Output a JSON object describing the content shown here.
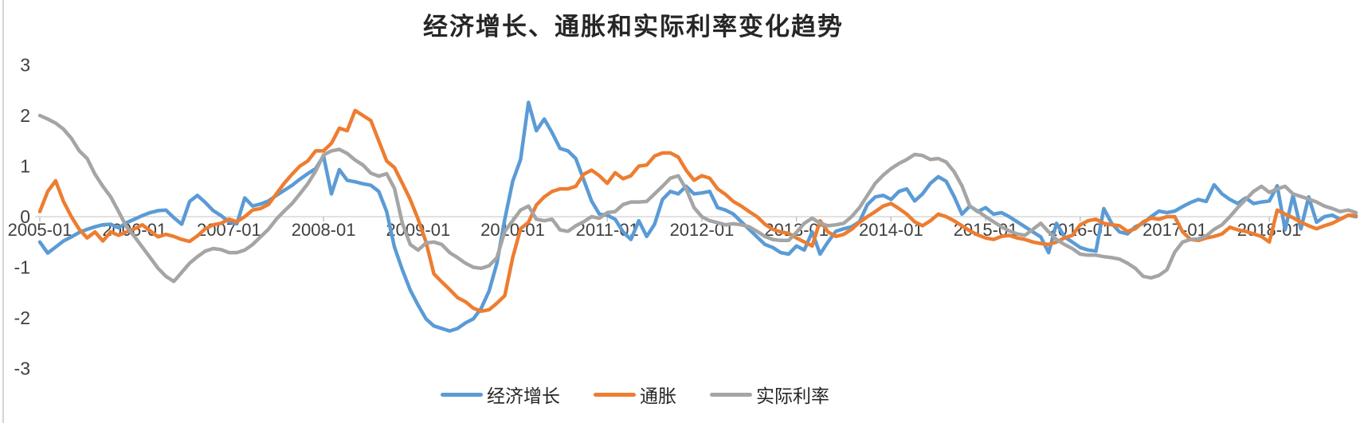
{
  "title": "经济增长、通胀和实际利率变化趋势",
  "colors": {
    "growth": "#5B9BD5",
    "inflation": "#ED7D31",
    "real_rate": "#A5A5A5",
    "axis_line": "#D9D9D9",
    "tick_mark": "#BFBFBF",
    "axis_text": "#3f3f3f",
    "title_text": "#262626"
  },
  "chart_data": {
    "type": "line",
    "title": "经济增长、通胀和实际利率变化趋势",
    "x_start": "2005-01",
    "x_end": "2018-12",
    "x_frequency": "monthly",
    "points_per_series": 168,
    "x_tick_labels": [
      "2005-01",
      "2006-01",
      "2007-01",
      "2008-01",
      "2009-01",
      "2010-01",
      "2011-01",
      "2012-01",
      "2013-01",
      "2014-01",
      "2015-01",
      "2016-01",
      "2017-01",
      "2018-01"
    ],
    "x_tick_interval_months": 12,
    "y_ticks": [
      3,
      2,
      1,
      0,
      -1,
      -2,
      -3
    ],
    "ylim": [
      -3,
      3
    ],
    "grid": false,
    "legend_position": "bottom",
    "series": [
      {
        "name": "经济增长",
        "key": "economic-growth",
        "color": "#5B9BD5",
        "values": [
          -0.5,
          -0.72,
          -0.6,
          -0.48,
          -0.4,
          -0.31,
          -0.25,
          -0.2,
          -0.16,
          -0.15,
          -0.22,
          -0.12,
          -0.05,
          0.02,
          0.08,
          0.12,
          0.13,
          -0.02,
          -0.15,
          0.3,
          0.42,
          0.28,
          0.12,
          0.02,
          -0.1,
          -0.14,
          0.37,
          0.21,
          0.25,
          0.31,
          0.42,
          0.52,
          0.62,
          0.74,
          0.85,
          0.95,
          1.2,
          0.45,
          0.93,
          0.72,
          0.69,
          0.65,
          0.62,
          0.5,
          0.1,
          -0.6,
          -1.05,
          -1.45,
          -1.75,
          -2.02,
          -2.16,
          -2.21,
          -2.26,
          -2.21,
          -2.1,
          -2.02,
          -1.81,
          -1.47,
          -0.92,
          -0.05,
          0.7,
          1.13,
          2.26,
          1.7,
          1.93,
          1.66,
          1.35,
          1.3,
          1.15,
          0.73,
          0.31,
          0.05,
          0.03,
          -0.05,
          -0.3,
          -0.45,
          -0.08,
          -0.39,
          -0.15,
          0.34,
          0.5,
          0.45,
          0.6,
          0.45,
          0.47,
          0.5,
          0.18,
          0.13,
          0.05,
          -0.1,
          -0.25,
          -0.4,
          -0.55,
          -0.61,
          -0.71,
          -0.74,
          -0.58,
          -0.66,
          -0.3,
          -0.74,
          -0.5,
          -0.29,
          -0.24,
          -0.2,
          -0.1,
          0.24,
          0.39,
          0.42,
          0.34,
          0.5,
          0.55,
          0.31,
          0.45,
          0.66,
          0.79,
          0.7,
          0.4,
          0.05,
          0.21,
          0.1,
          0.18,
          0.05,
          0.08,
          0.0,
          -0.1,
          -0.2,
          -0.3,
          -0.4,
          -0.71,
          -0.13,
          -0.4,
          -0.5,
          -0.61,
          -0.66,
          -0.68,
          0.16,
          -0.13,
          -0.3,
          -0.34,
          -0.2,
          -0.13,
          0.0,
          0.11,
          0.08,
          0.11,
          0.2,
          0.28,
          0.34,
          0.3,
          0.63,
          0.45,
          0.34,
          0.26,
          0.37,
          0.26,
          0.29,
          0.31,
          0.61,
          -0.26,
          0.42,
          -0.24,
          0.39,
          -0.11,
          0.0,
          0.03,
          -0.05,
          0.03,
          0.0
        ]
      },
      {
        "name": "通胀",
        "key": "inflation",
        "color": "#ED7D31",
        "values": [
          0.1,
          0.5,
          0.71,
          0.3,
          0.0,
          -0.25,
          -0.42,
          -0.3,
          -0.48,
          -0.3,
          -0.37,
          -0.3,
          -0.24,
          -0.16,
          -0.28,
          -0.4,
          -0.35,
          -0.39,
          -0.45,
          -0.49,
          -0.38,
          -0.24,
          -0.16,
          -0.13,
          -0.05,
          -0.1,
          0.0,
          0.13,
          0.16,
          0.24,
          0.45,
          0.66,
          0.84,
          1.0,
          1.1,
          1.3,
          1.3,
          1.45,
          1.75,
          1.7,
          2.1,
          2.0,
          1.9,
          1.5,
          1.1,
          0.97,
          0.66,
          0.34,
          -0.05,
          -0.5,
          -1.13,
          -1.29,
          -1.44,
          -1.6,
          -1.68,
          -1.81,
          -1.87,
          -1.84,
          -1.71,
          -1.56,
          -0.81,
          -0.24,
          -0.11,
          0.23,
          0.39,
          0.5,
          0.55,
          0.55,
          0.6,
          0.84,
          0.92,
          0.81,
          0.66,
          0.87,
          0.75,
          0.81,
          1.0,
          1.02,
          1.2,
          1.26,
          1.26,
          1.18,
          0.92,
          0.72,
          0.81,
          0.76,
          0.55,
          0.44,
          0.3,
          0.21,
          0.1,
          0.0,
          -0.15,
          -0.25,
          -0.3,
          -0.33,
          -0.42,
          -0.5,
          -0.58,
          -0.08,
          -0.3,
          -0.39,
          -0.35,
          -0.25,
          -0.11,
          0.0,
          0.1,
          0.21,
          0.26,
          0.16,
          0.05,
          -0.1,
          -0.18,
          -0.08,
          0.05,
          0.0,
          -0.08,
          -0.18,
          -0.28,
          -0.36,
          -0.42,
          -0.45,
          -0.39,
          -0.37,
          -0.42,
          -0.45,
          -0.5,
          -0.53,
          -0.55,
          -0.5,
          -0.42,
          -0.37,
          -0.16,
          -0.08,
          -0.05,
          -0.13,
          -0.16,
          -0.18,
          -0.29,
          -0.24,
          -0.1,
          -0.03,
          -0.05,
          0.0,
          0.0,
          -0.3,
          -0.45,
          -0.47,
          -0.42,
          -0.39,
          -0.34,
          -0.21,
          -0.26,
          -0.29,
          -0.34,
          -0.39,
          -0.5,
          0.13,
          0.05,
          -0.02,
          -0.11,
          -0.18,
          -0.24,
          -0.18,
          -0.13,
          -0.05,
          0.03,
          0.02
        ]
      },
      {
        "name": "实际利率",
        "key": "real-interest-rate",
        "color": "#A5A5A5",
        "values": [
          2.0,
          1.93,
          1.85,
          1.73,
          1.55,
          1.3,
          1.15,
          0.84,
          0.6,
          0.39,
          0.1,
          -0.2,
          -0.39,
          -0.6,
          -0.81,
          -1.02,
          -1.18,
          -1.28,
          -1.1,
          -0.92,
          -0.79,
          -0.68,
          -0.63,
          -0.65,
          -0.71,
          -0.71,
          -0.66,
          -0.55,
          -0.4,
          -0.25,
          -0.05,
          0.11,
          0.26,
          0.45,
          0.65,
          0.9,
          1.22,
          1.3,
          1.33,
          1.25,
          1.12,
          1.02,
          0.86,
          0.8,
          0.85,
          0.56,
          -0.13,
          -0.55,
          -0.66,
          -0.52,
          -0.5,
          -0.55,
          -0.71,
          -0.81,
          -0.92,
          -1.0,
          -1.02,
          -0.97,
          -0.81,
          -0.29,
          -0.08,
          0.13,
          0.21,
          -0.05,
          -0.08,
          -0.05,
          -0.26,
          -0.29,
          -0.18,
          -0.1,
          0.0,
          -0.03,
          0.08,
          0.1,
          0.24,
          0.29,
          0.29,
          0.3,
          0.45,
          0.6,
          0.76,
          0.81,
          0.55,
          0.18,
          0.0,
          -0.08,
          -0.12,
          -0.16,
          -0.14,
          -0.16,
          -0.2,
          -0.29,
          -0.39,
          -0.45,
          -0.47,
          -0.47,
          -0.31,
          -0.13,
          -0.03,
          -0.13,
          -0.18,
          -0.16,
          -0.13,
          0.0,
          0.18,
          0.42,
          0.66,
          0.82,
          0.95,
          1.05,
          1.13,
          1.23,
          1.21,
          1.13,
          1.15,
          1.08,
          0.89,
          0.61,
          0.21,
          0.11,
          0.0,
          -0.1,
          -0.2,
          -0.28,
          -0.34,
          -0.37,
          -0.25,
          -0.13,
          -0.3,
          -0.45,
          -0.55,
          -0.63,
          -0.74,
          -0.76,
          -0.76,
          -0.79,
          -0.81,
          -0.84,
          -0.92,
          -1.02,
          -1.18,
          -1.21,
          -1.16,
          -1.05,
          -0.7,
          -0.5,
          -0.45,
          -0.44,
          -0.38,
          -0.25,
          -0.16,
          0.0,
          0.18,
          0.34,
          0.5,
          0.6,
          0.48,
          0.55,
          0.6,
          0.45,
          0.4,
          0.35,
          0.29,
          0.21,
          0.16,
          0.1,
          0.13,
          0.08
        ]
      }
    ]
  },
  "legend": {
    "items": [
      {
        "label": "经济增长"
      },
      {
        "label": "通胀"
      },
      {
        "label": "实际利率"
      }
    ]
  }
}
